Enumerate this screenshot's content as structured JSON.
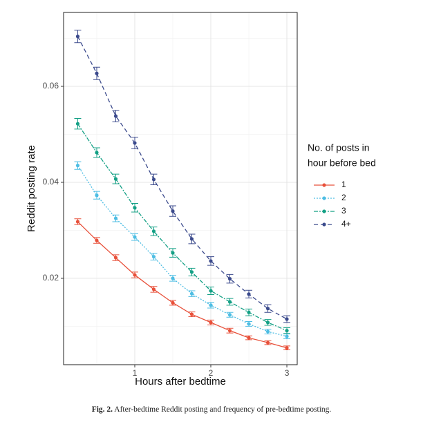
{
  "chart_data": {
    "type": "line",
    "x_label": "Hours after bedtime",
    "y_label": "Reddit posting rate",
    "x": [
      0.25,
      0.5,
      0.75,
      1,
      1.25,
      1.5,
      1.75,
      2,
      2.25,
      2.5,
      2.75,
      3
    ],
    "legend_title": [
      "No. of posts in",
      "hour before bed"
    ],
    "series": [
      {
        "name": "1",
        "color": "#e8503a",
        "linestyle": "solid",
        "values": [
          0.0318,
          0.0279,
          0.0243,
          0.0207,
          0.0177,
          0.0149,
          0.0125,
          0.0108,
          0.0091,
          0.0076,
          0.0066,
          0.0055
        ],
        "errors": [
          0.0006,
          0.0006,
          0.0006,
          0.0006,
          0.0006,
          0.0005,
          0.0005,
          0.0005,
          0.0005,
          0.0004,
          0.0004,
          0.0004
        ]
      },
      {
        "name": "2",
        "color": "#4dbde3",
        "linestyle": "dotted",
        "values": [
          0.0435,
          0.0373,
          0.0325,
          0.0286,
          0.0245,
          0.02,
          0.0168,
          0.0144,
          0.0124,
          0.0105,
          0.0089,
          0.0079
        ],
        "errors": [
          0.0008,
          0.0008,
          0.0007,
          0.0007,
          0.0007,
          0.0006,
          0.0006,
          0.0006,
          0.0005,
          0.0005,
          0.0005,
          0.0005
        ]
      },
      {
        "name": "3",
        "color": "#14a085",
        "linestyle": "dashdot",
        "values": [
          0.0522,
          0.0462,
          0.0407,
          0.0347,
          0.0298,
          0.0253,
          0.0213,
          0.0174,
          0.0151,
          0.0129,
          0.0108,
          0.0091
        ],
        "errors": [
          0.0011,
          0.001,
          0.001,
          0.0009,
          0.0009,
          0.0009,
          0.0008,
          0.0008,
          0.0007,
          0.0007,
          0.0006,
          0.0006
        ]
      },
      {
        "name": "4+",
        "color": "#3b4a8c",
        "linestyle": "dashed",
        "values": [
          0.0704,
          0.0627,
          0.0538,
          0.0482,
          0.0406,
          0.034,
          0.0282,
          0.0236,
          0.0199,
          0.0167,
          0.0137,
          0.0115
        ],
        "errors": [
          0.0013,
          0.0013,
          0.0012,
          0.0012,
          0.0011,
          0.0011,
          0.001,
          0.0009,
          0.0009,
          0.0008,
          0.0008,
          0.0007
        ]
      }
    ],
    "xlim": [
      0.064,
      3.136
    ],
    "ylim": [
      0.002,
      0.0754
    ],
    "xticks": [
      1,
      2,
      3
    ],
    "yticks": [
      0.02,
      0.04,
      0.06
    ],
    "grid": true
  },
  "caption": {
    "label": "Fig. 2.",
    "text": "After-bedtime Reddit posting and frequency of pre-bedtime posting."
  }
}
